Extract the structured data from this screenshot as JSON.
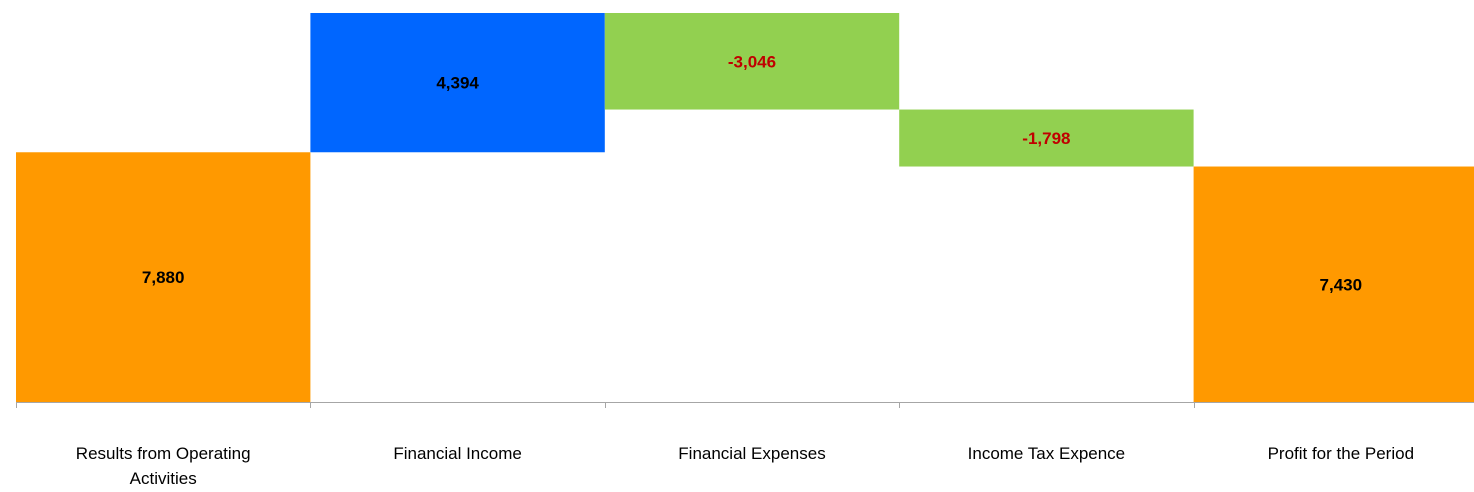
{
  "chart_data": {
    "type": "bar",
    "subtype": "waterfall",
    "title": "",
    "xlabel": "",
    "ylabel": "",
    "grid": false,
    "legend": "none",
    "categories": [
      [
        "Results from Operating",
        "Activities"
      ],
      [
        "Financial Income"
      ],
      [
        "Financial Expenses"
      ],
      [
        "Income Tax Expence"
      ],
      [
        "Profit for the Period"
      ]
    ],
    "values": [
      7880,
      4394,
      -3046,
      -1798,
      7430
    ],
    "value_labels": [
      "7,880",
      "4,394",
      "-3,046",
      "-1,798",
      "7,430"
    ],
    "kinds": [
      "total",
      "delta",
      "delta",
      "delta",
      "total"
    ],
    "ylim": [
      0,
      12274
    ],
    "colors": {
      "total": "#FF9900",
      "increase": "#0066FF",
      "decrease": "#92D050",
      "label_positive": "#000000",
      "label_negative": "#C00000",
      "axis": "#A6A6A6"
    }
  }
}
